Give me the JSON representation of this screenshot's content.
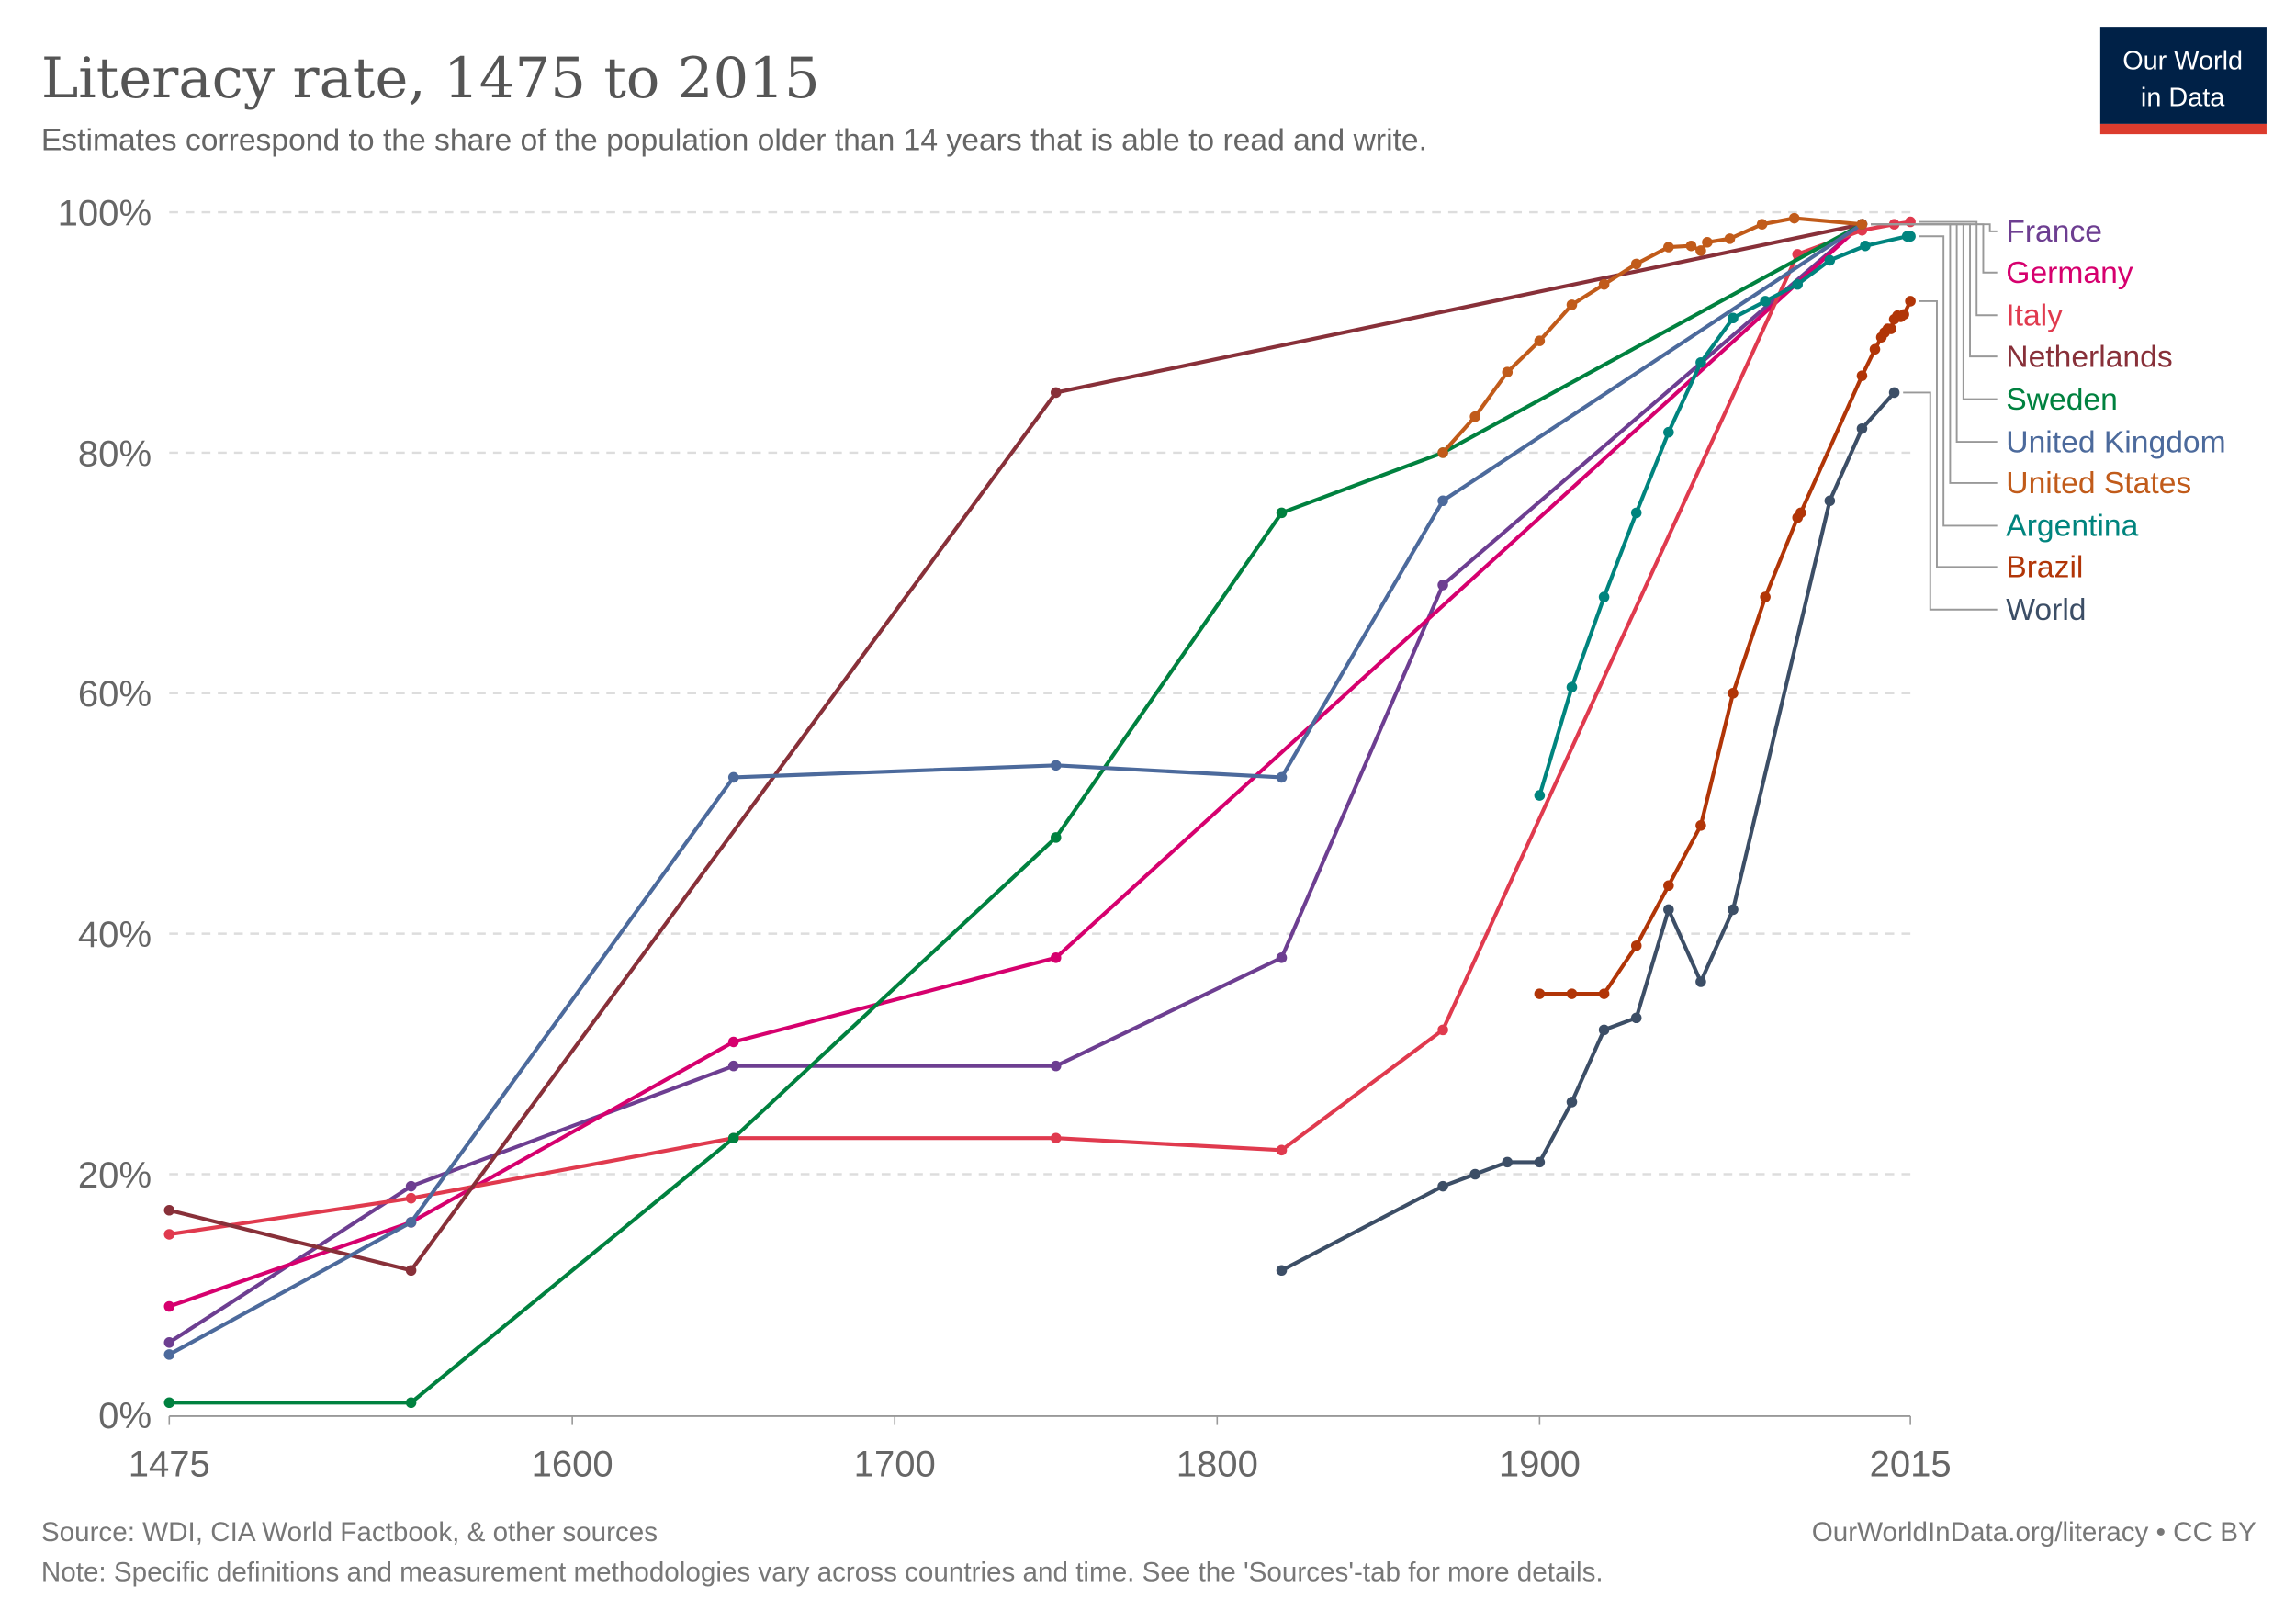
{
  "title": "Literacy rate, 1475 to 2015",
  "subtitle": "Estimates correspond to the share of the population older than 14 years that is able to read and write.",
  "logo": {
    "line1": "Our World",
    "line2": "in Data",
    "bg": "#002147",
    "accent": "#dc3c2e"
  },
  "footer": {
    "source": "Source: WDI, CIA World Factbook, & other sources",
    "link": "OurWorldInData.org/literacy • CC BY",
    "note": "Note: Specific definitions and measurement methodologies vary across countries and time. See the 'Sources'-tab for more details."
  },
  "chart_data": {
    "type": "line",
    "title": "Literacy rate, 1475 to 2015",
    "xlim": [
      1475,
      2015
    ],
    "ylim": [
      0,
      100
    ],
    "x_ticks": [
      "1475",
      "1600",
      "1700",
      "1800",
      "1900",
      "2015"
    ],
    "y_ticks": [
      "0%",
      "20%",
      "40%",
      "60%",
      "80%",
      "100%"
    ],
    "grid": "horizontal dashed",
    "legend": "right",
    "series": [
      {
        "name": "France",
        "color": "#6d3e91",
        "points": [
          [
            1475,
            6
          ],
          [
            1550,
            19
          ],
          [
            1650,
            29
          ],
          [
            1750,
            29
          ],
          [
            1820,
            38
          ],
          [
            1870,
            69
          ],
          [
            2000,
            99
          ]
        ]
      },
      {
        "name": "Germany",
        "color": "#d6006e",
        "points": [
          [
            1475,
            9
          ],
          [
            1550,
            16
          ],
          [
            1650,
            31
          ],
          [
            1750,
            38
          ],
          [
            2000,
            99
          ]
        ]
      },
      {
        "name": "Italy",
        "color": "#e03a4e",
        "points": [
          [
            1475,
            15
          ],
          [
            1550,
            18
          ],
          [
            1650,
            23
          ],
          [
            1750,
            23
          ],
          [
            1820,
            22
          ],
          [
            1870,
            32
          ],
          [
            1980,
            96.5
          ],
          [
            2000,
            98.5
          ],
          [
            2010,
            99
          ],
          [
            2015,
            99.2
          ]
        ]
      },
      {
        "name": "Netherlands",
        "color": "#883039",
        "points": [
          [
            1475,
            17
          ],
          [
            1550,
            12
          ],
          [
            1750,
            85
          ],
          [
            2000,
            99
          ]
        ]
      },
      {
        "name": "Sweden",
        "color": "#00813f",
        "points": [
          [
            1475,
            1
          ],
          [
            1550,
            1
          ],
          [
            1650,
            23
          ],
          [
            1750,
            48
          ],
          [
            1820,
            75
          ],
          [
            1870,
            80
          ],
          [
            2000,
            99
          ]
        ]
      },
      {
        "name": "United Kingdom",
        "color": "#4c6a9c",
        "points": [
          [
            1475,
            5
          ],
          [
            1550,
            16
          ],
          [
            1650,
            53
          ],
          [
            1750,
            54
          ],
          [
            1820,
            53
          ],
          [
            1870,
            76
          ],
          [
            2000,
            99
          ]
        ]
      },
      {
        "name": "United States",
        "color": "#c15b1a",
        "points": [
          [
            1870,
            80
          ],
          [
            1880,
            83
          ],
          [
            1890,
            86.7
          ],
          [
            1900,
            89.3
          ],
          [
            1910,
            92.3
          ],
          [
            1920,
            94
          ],
          [
            1930,
            95.7
          ],
          [
            1940,
            97.1
          ],
          [
            1947,
            97.2
          ],
          [
            1950,
            96.8
          ],
          [
            1952,
            97.5
          ],
          [
            1959,
            97.8
          ],
          [
            1969,
            99
          ],
          [
            1979,
            99.5
          ],
          [
            2000,
            99
          ]
        ]
      },
      {
        "name": "Argentina",
        "color": "#00847e",
        "points": [
          [
            1900,
            51.5
          ],
          [
            1910,
            60.5
          ],
          [
            1920,
            68
          ],
          [
            1930,
            75
          ],
          [
            1940,
            81.7
          ],
          [
            1950,
            87.5
          ],
          [
            1960,
            91.2
          ],
          [
            1970,
            92.6
          ],
          [
            1980,
            94
          ],
          [
            1990,
            96
          ],
          [
            2001,
            97.2
          ],
          [
            2014,
            98
          ],
          [
            2015,
            98
          ]
        ]
      },
      {
        "name": "Brazil",
        "color": "#b13507",
        "points": [
          [
            1900,
            35
          ],
          [
            1910,
            35
          ],
          [
            1920,
            35
          ],
          [
            1930,
            39
          ],
          [
            1940,
            44
          ],
          [
            1950,
            49
          ],
          [
            1960,
            60
          ],
          [
            1970,
            68
          ],
          [
            1980,
            74.6
          ],
          [
            1981,
            75
          ],
          [
            2000,
            86.4
          ],
          [
            2004,
            88.6
          ],
          [
            2006,
            89.6
          ],
          [
            2007,
            90
          ],
          [
            2008,
            90.3
          ],
          [
            2009,
            90.3
          ],
          [
            2010,
            91.1
          ],
          [
            2011,
            91.4
          ],
          [
            2012,
            91.3
          ],
          [
            2013,
            91.5
          ],
          [
            2015,
            92.6
          ]
        ]
      },
      {
        "name": "World",
        "color": "#3c4e66",
        "points": [
          [
            1820,
            12
          ],
          [
            1870,
            19
          ],
          [
            1880,
            20
          ],
          [
            1890,
            21
          ],
          [
            1900,
            21
          ],
          [
            1910,
            26
          ],
          [
            1920,
            32
          ],
          [
            1930,
            33
          ],
          [
            1940,
            42
          ],
          [
            1950,
            36
          ],
          [
            1960,
            42
          ],
          [
            1990,
            76
          ],
          [
            2000,
            82
          ],
          [
            2010,
            85
          ]
        ]
      }
    ]
  }
}
